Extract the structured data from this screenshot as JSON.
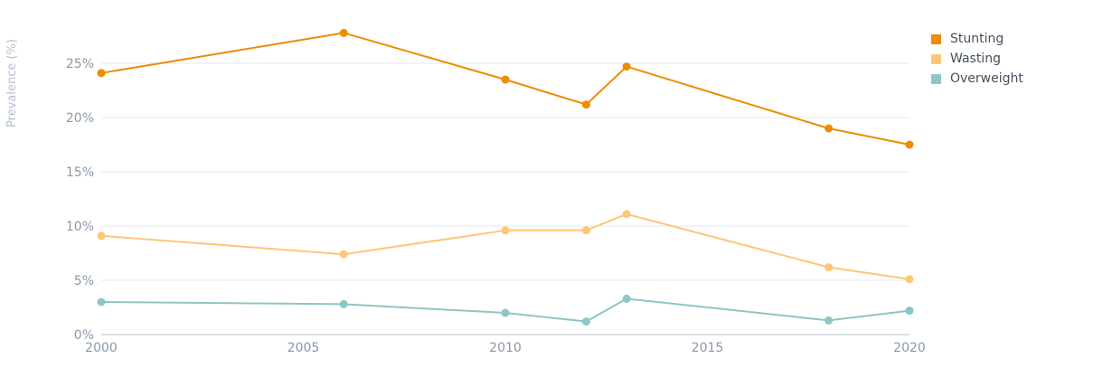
{
  "chart_data": {
    "type": "line",
    "title": "",
    "xlabel": "",
    "ylabel": "Prevalence (%)",
    "x": [
      2000,
      2006,
      2010,
      2012,
      2013,
      2018,
      2020
    ],
    "xlim": [
      2000,
      2020
    ],
    "ylim": [
      0,
      28
    ],
    "x_ticks": [
      2000,
      2005,
      2010,
      2015,
      2020
    ],
    "x_tick_labels": [
      "2000",
      "2005",
      "2010",
      "2015",
      "2020"
    ],
    "y_ticks": [
      0,
      5,
      10,
      15,
      20,
      25
    ],
    "y_tick_labels": [
      "0%",
      "5%",
      "10%",
      "15%",
      "20%",
      "25%"
    ],
    "grid": true,
    "legend_position": "top-right",
    "series": [
      {
        "name": "Stunting",
        "color": "#ef8c00",
        "values": [
          24.1,
          27.8,
          23.5,
          21.2,
          24.7,
          19.0,
          17.5
        ]
      },
      {
        "name": "Wasting",
        "color": "#fdc776",
        "values": [
          9.1,
          7.4,
          9.6,
          9.6,
          11.1,
          6.2,
          5.1
        ]
      },
      {
        "name": "Overweight",
        "color": "#8ec5c5",
        "values": [
          3.0,
          2.8,
          2.0,
          1.2,
          3.3,
          1.3,
          2.2
        ]
      }
    ]
  }
}
